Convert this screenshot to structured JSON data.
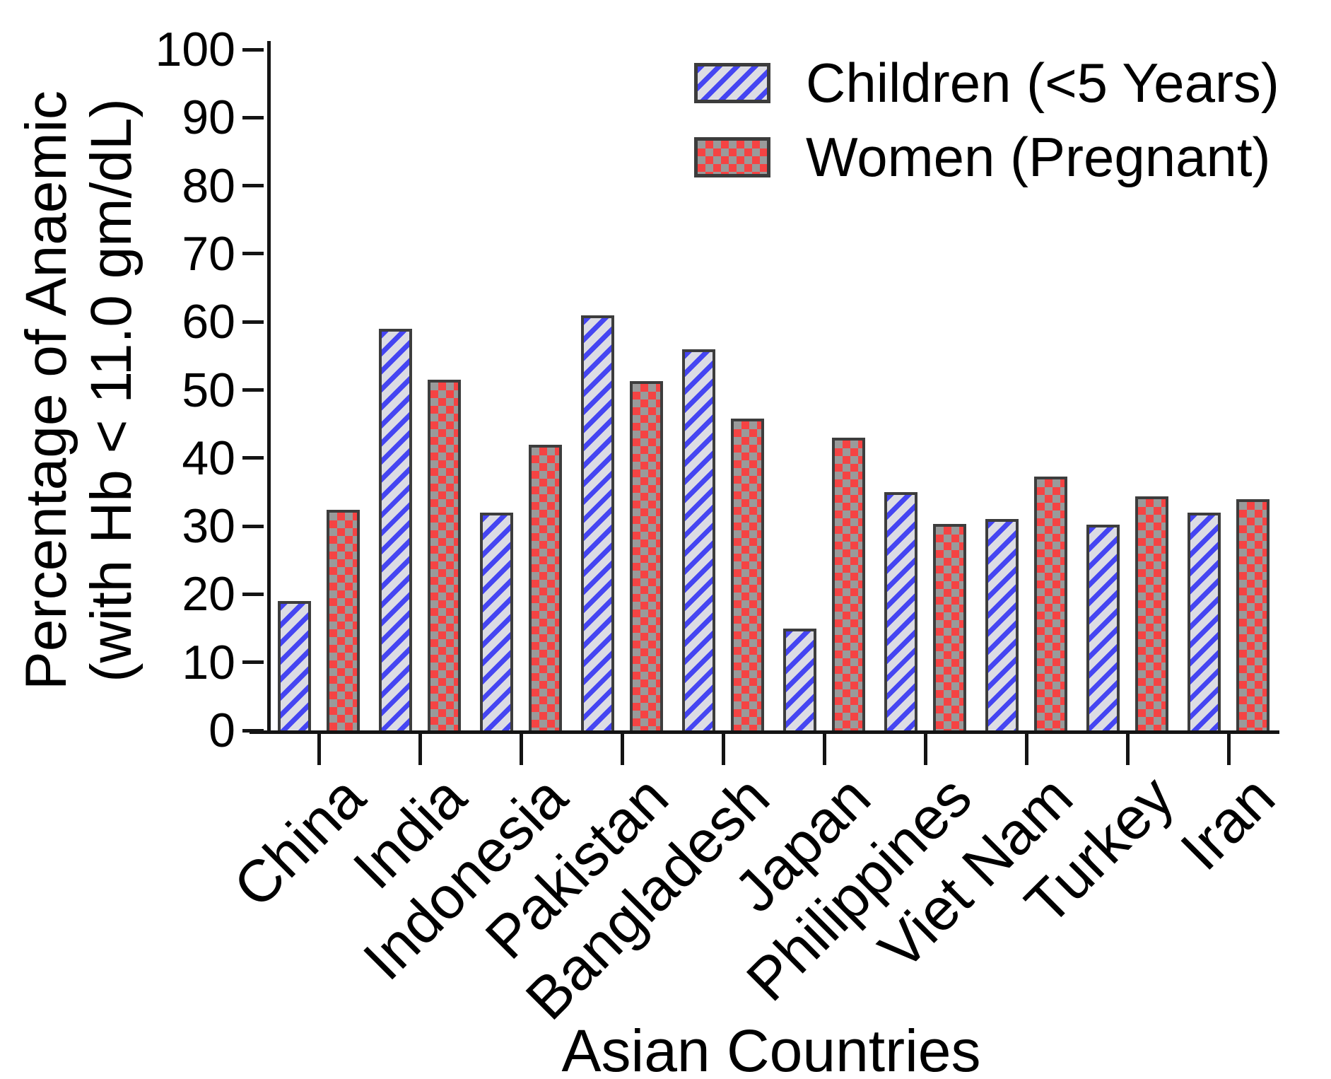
{
  "figure": {
    "y_axis_title_line1": "Percentage of Anaemic",
    "y_axis_title_line2": "(with Hb < 11.0 gm/dL)",
    "x_axis_title": "Asian Countries"
  },
  "legend": {
    "items": [
      {
        "label": "Children (<5 Years)",
        "swatch": "blue-diagonal-stripes"
      },
      {
        "label": "Women (Pregnant)",
        "swatch": "red-checkerboard"
      }
    ]
  },
  "colors": {
    "children_stripe": "#4545f2",
    "children_background": "#dcdce4",
    "women_red": "#f54343",
    "women_gray": "#9a9a9a",
    "bar_border": "#3d3d3d",
    "axis": "#141414",
    "text": "#000000",
    "background": "#ffffff"
  },
  "chart_data": {
    "type": "bar",
    "title": "",
    "xlabel": "Asian Countries",
    "ylabel": "Percentage of Anaemic (with Hb < 11.0 gm/dL)",
    "categories": [
      "China",
      "India",
      "Indonesia",
      "Pakistan",
      "Bangladesh",
      "Japan",
      "Philippines",
      "Viet Nam",
      "Turkey",
      "Iran"
    ],
    "series": [
      {
        "name": "Children (<5 Years)",
        "pattern": "blue-diagonal-stripes",
        "values": [
          19,
          59,
          32,
          61,
          56,
          15,
          35,
          31,
          30.2,
          32
        ]
      },
      {
        "name": "Women (Pregnant)",
        "pattern": "red-checkerboard",
        "values": [
          32.4,
          51.5,
          42,
          51.3,
          45.8,
          43,
          30.3,
          37.3,
          34.4,
          34
        ]
      }
    ],
    "ylim": [
      0,
      100
    ],
    "ytick_step": 10,
    "ytick_labels": [
      "0",
      "10",
      "20",
      "30",
      "40",
      "50",
      "60",
      "70",
      "80",
      "90",
      "100"
    ],
    "grid": false,
    "legend_position": "top-right",
    "x_tick_label_rotation_deg": 45
  }
}
